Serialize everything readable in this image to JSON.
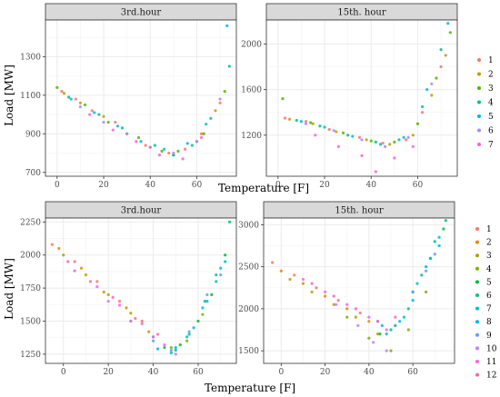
{
  "chart_data": [
    {
      "type": "scatter",
      "title": "3rd.hour",
      "xlabel": "Temperature [F]",
      "ylabel": "Load [MW]",
      "xlim": [
        -5,
        77
      ],
      "ylim": [
        680,
        1490
      ],
      "x_ticks": [
        0,
        20,
        40,
        60
      ],
      "y_ticks": [
        700,
        900,
        1100,
        1300
      ],
      "grid": true,
      "legend": "right",
      "series": [
        {
          "name": "1",
          "x": [
            2,
            8,
            15,
            25,
            38,
            48,
            55,
            62,
            70
          ],
          "y": [
            1120,
            1080,
            1020,
            960,
            840,
            800,
            820,
            900,
            1060
          ]
        },
        {
          "name": "2",
          "x": [
            3,
            10,
            20,
            30,
            40,
            50,
            60,
            68
          ],
          "y": [
            1110,
            1060,
            990,
            900,
            830,
            790,
            860,
            1020
          ]
        },
        {
          "name": "3",
          "x": [
            0,
            12,
            22,
            35,
            45,
            52,
            63,
            72
          ],
          "y": [
            1140,
            1050,
            960,
            880,
            810,
            810,
            900,
            1120
          ]
        },
        {
          "name": "4",
          "x": [
            5,
            18,
            28,
            42,
            50,
            58,
            66,
            74
          ],
          "y": [
            1090,
            1000,
            930,
            840,
            790,
            840,
            980,
            1250
          ]
        },
        {
          "name": "5",
          "x": [
            6,
            16,
            26,
            36,
            46,
            56,
            64,
            73
          ],
          "y": [
            1080,
            1010,
            940,
            860,
            820,
            850,
            950,
            1460
          ]
        },
        {
          "name": "6",
          "x": [
            10,
            20,
            30,
            40,
            50,
            60,
            70
          ],
          "y": [
            1040,
            960,
            900,
            830,
            800,
            860,
            1080
          ]
        },
        {
          "name": "7",
          "x": [
            14,
            24,
            34,
            44,
            54,
            62
          ],
          "y": [
            1000,
            920,
            860,
            790,
            770,
            880
          ]
        }
      ]
    },
    {
      "type": "scatter",
      "title": "15th. hour",
      "xlabel": "Temperature [F]",
      "ylabel": "Load [MW]",
      "xlim": [
        -5,
        77
      ],
      "ylim": [
        840,
        2210
      ],
      "x_ticks": [
        0,
        20,
        40,
        60
      ],
      "y_ticks": [
        1200,
        1600,
        2000
      ],
      "grid": true,
      "legend": "right",
      "series": [
        {
          "name": "1",
          "x": [
            3,
            12,
            22,
            35,
            45,
            55,
            62,
            70
          ],
          "y": [
            1350,
            1320,
            1250,
            1180,
            1130,
            1160,
            1400,
            1800
          ]
        },
        {
          "name": "2",
          "x": [
            5,
            15,
            25,
            38,
            48,
            58,
            66,
            72
          ],
          "y": [
            1340,
            1300,
            1230,
            1160,
            1120,
            1200,
            1550,
            1900
          ]
        },
        {
          "name": "3",
          "x": [
            2,
            14,
            28,
            40,
            50,
            60,
            68,
            74
          ],
          "y": [
            1520,
            1310,
            1220,
            1150,
            1140,
            1300,
            1700,
            2100
          ]
        },
        {
          "name": "4",
          "x": [
            8,
            18,
            30,
            42,
            52,
            62,
            70
          ],
          "y": [
            1330,
            1280,
            1200,
            1140,
            1160,
            1450,
            1950
          ]
        },
        {
          "name": "5",
          "x": [
            10,
            20,
            32,
            44,
            54,
            64,
            73
          ],
          "y": [
            1320,
            1270,
            1190,
            1120,
            1180,
            1600,
            2180
          ]
        },
        {
          "name": "6",
          "x": [
            12,
            24,
            36,
            46,
            56,
            66
          ],
          "y": [
            1300,
            1240,
            1160,
            1100,
            1180,
            1650
          ]
        },
        {
          "name": "7",
          "x": [
            16,
            26,
            36,
            42,
            50,
            58
          ],
          "y": [
            1200,
            1100,
            1020,
            880,
            1000,
            1100
          ]
        }
      ]
    },
    {
      "type": "scatter",
      "title": "3rd.hour",
      "xlabel": "Temperature [F]",
      "ylabel": "Load [MW]",
      "xlim": [
        -8,
        77
      ],
      "ylim": [
        1180,
        2280
      ],
      "x_ticks": [
        0,
        20,
        40,
        60
      ],
      "y_ticks": [
        1250,
        1500,
        1750,
        2000,
        2250
      ],
      "grid": true,
      "legend": "right",
      "series": [
        {
          "name": "1",
          "x": [
            -5,
            5,
            15,
            25,
            35
          ],
          "y": [
            2080,
            1950,
            1800,
            1650,
            1500
          ]
        },
        {
          "name": "2",
          "x": [
            -2,
            8,
            18,
            28,
            38
          ],
          "y": [
            2050,
            1900,
            1720,
            1600,
            1420
          ]
        },
        {
          "name": "3",
          "x": [
            0,
            10,
            20,
            30,
            40
          ],
          "y": [
            2000,
            1850,
            1700,
            1560,
            1380
          ]
        },
        {
          "name": "4",
          "x": [
            30,
            40,
            48,
            55,
            62
          ],
          "y": [
            1500,
            1380,
            1300,
            1350,
            1550
          ]
        },
        {
          "name": "5",
          "x": [
            45,
            52,
            60,
            66,
            72
          ],
          "y": [
            1300,
            1320,
            1500,
            1700,
            2000
          ]
        },
        {
          "name": "6",
          "x": [
            50,
            56,
            63,
            68,
            74
          ],
          "y": [
            1280,
            1400,
            1650,
            1850,
            2250
          ]
        },
        {
          "name": "7",
          "x": [
            48,
            55,
            62,
            68,
            72
          ],
          "y": [
            1260,
            1380,
            1600,
            1800,
            1950
          ]
        },
        {
          "name": "8",
          "x": [
            42,
            50,
            58,
            64,
            70
          ],
          "y": [
            1290,
            1300,
            1450,
            1650,
            1900
          ]
        },
        {
          "name": "9",
          "x": [
            40,
            48,
            56,
            64,
            70
          ],
          "y": [
            1350,
            1280,
            1420,
            1700,
            1850
          ]
        },
        {
          "name": "10",
          "x": [
            20,
            30,
            40,
            50
          ],
          "y": [
            1650,
            1500,
            1380,
            1250
          ]
        },
        {
          "name": "11",
          "x": [
            5,
            15,
            25,
            35,
            45
          ],
          "y": [
            1880,
            1760,
            1620,
            1480,
            1320
          ]
        },
        {
          "name": "12",
          "x": [
            2,
            12,
            22,
            32,
            42
          ],
          "y": [
            1950,
            1800,
            1680,
            1520,
            1400
          ]
        }
      ]
    },
    {
      "type": "scatter",
      "title": "15th. hour",
      "xlabel": "Temperature [F]",
      "ylabel": "Load [MW]",
      "xlim": [
        -8,
        79
      ],
      "ylim": [
        1350,
        3080
      ],
      "x_ticks": [
        0,
        20,
        40,
        60
      ],
      "y_ticks": [
        1500,
        2000,
        2500,
        3000
      ],
      "grid": true,
      "legend": "right",
      "series": [
        {
          "name": "1",
          "x": [
            -4,
            6,
            16,
            26,
            36
          ],
          "y": [
            2550,
            2400,
            2250,
            2100,
            1950
          ]
        },
        {
          "name": "2",
          "x": [
            0,
            10,
            20,
            30,
            40
          ],
          "y": [
            2450,
            2300,
            2150,
            2000,
            1850
          ]
        },
        {
          "name": "3",
          "x": [
            4,
            14,
            24,
            34,
            44
          ],
          "y": [
            2350,
            2200,
            2050,
            1900,
            1700
          ]
        },
        {
          "name": "4",
          "x": [
            30,
            40,
            50,
            58,
            66
          ],
          "y": [
            1900,
            1650,
            1500,
            1750,
            2200
          ]
        },
        {
          "name": "5",
          "x": [
            45,
            52,
            60,
            68,
            74
          ],
          "y": [
            1700,
            1800,
            2200,
            2600,
            2950
          ]
        },
        {
          "name": "6",
          "x": [
            50,
            58,
            64,
            70,
            75
          ],
          "y": [
            1750,
            2000,
            2400,
            2800,
            3050
          ]
        },
        {
          "name": "7",
          "x": [
            48,
            56,
            62,
            68,
            72
          ],
          "y": [
            1700,
            1900,
            2300,
            2600,
            2850
          ]
        },
        {
          "name": "8",
          "x": [
            46,
            54,
            60,
            66,
            72
          ],
          "y": [
            1800,
            1850,
            2100,
            2500,
            2750
          ]
        },
        {
          "name": "9",
          "x": [
            44,
            52,
            60,
            66,
            70
          ],
          "y": [
            1850,
            1800,
            2200,
            2450,
            2650
          ]
        },
        {
          "name": "10",
          "x": [
            25,
            35,
            42,
            48
          ],
          "y": [
            2050,
            1800,
            1600,
            1500
          ]
        },
        {
          "name": "11",
          "x": [
            10,
            20,
            30,
            40,
            48
          ],
          "y": [
            2350,
            2200,
            2050,
            1900,
            1750
          ]
        },
        {
          "name": "12",
          "x": [
            14,
            24,
            34,
            44,
            52
          ],
          "y": [
            2300,
            2150,
            2000,
            1850,
            1900
          ]
        }
      ]
    }
  ],
  "legends": {
    "top": {
      "entries": [
        "1",
        "2",
        "3",
        "4",
        "5",
        "6",
        "7"
      ],
      "colors": [
        "#F8766D",
        "#C49A00",
        "#53B400",
        "#00C094",
        "#00B6EB",
        "#A58AFF",
        "#FB61D7"
      ]
    },
    "bottom": {
      "entries": [
        "1",
        "2",
        "3",
        "4",
        "5",
        "6",
        "7",
        "8",
        "9",
        "10",
        "11",
        "12"
      ],
      "colors": [
        "#F8766D",
        "#DE8C00",
        "#B79F00",
        "#7CAE00",
        "#00BA38",
        "#00C08B",
        "#00BFC4",
        "#00B4F0",
        "#619CFF",
        "#C77CFF",
        "#F564E3",
        "#FF64B0"
      ]
    }
  },
  "colors": {
    "panel_bg": "#ffffff",
    "grid_major": "#ebebeb",
    "grid_minor": "#f5f5f5",
    "strip_bg": "#d9d9d9",
    "border": "#333333"
  }
}
